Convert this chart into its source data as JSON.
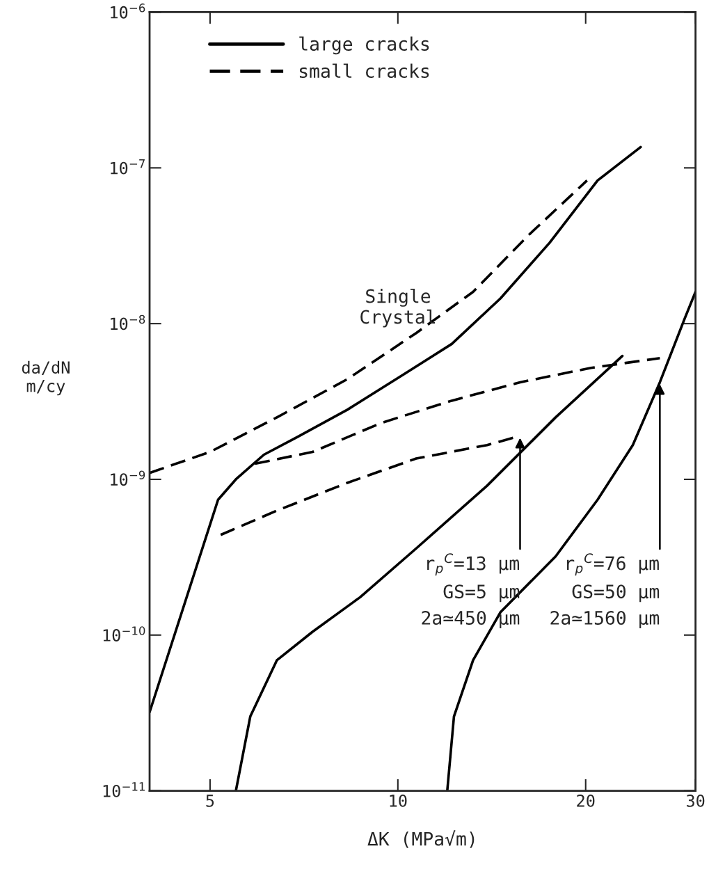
{
  "chart_data": {
    "type": "line",
    "xlabel": "ΔK (MPa√m)",
    "ylabel": "da/dN\nm/cy",
    "log": "xy",
    "xlim": [
      4,
      30
    ],
    "ylim": [
      1e-11,
      1e-06
    ],
    "xticks": [
      5,
      10,
      20,
      30
    ],
    "yticks": [
      {
        "value": 1e-11,
        "label": "10$^{−11}$"
      },
      {
        "value": 1e-10,
        "label": "10$^{−10}$"
      },
      {
        "value": 1e-09,
        "label": "10$^{−9}$"
      },
      {
        "value": 1e-08,
        "label": "10$^{−8}$"
      },
      {
        "value": 1e-07,
        "label": "10$^{−7}$"
      },
      {
        "value": 1e-06,
        "label": "10$^{−6}$"
      }
    ],
    "grid": false,
    "legend": "top left",
    "marker": "none",
    "series": [
      {
        "name": "large cracks",
        "color": "#000000",
        "line_style": "solid",
        "x": [
          4.0,
          5.15,
          5.5,
          6.1,
          6.9,
          8.3,
          10.2,
          12.2,
          14.6,
          17.5,
          20.9,
          24.5
        ],
        "values": [
          3.2e-11,
          7.4e-10,
          1e-09,
          1.44e-09,
          1.87e-09,
          2.8e-09,
          4.7e-09,
          7.4e-09,
          1.45e-08,
          3.3e-08,
          8.3e-08,
          1.36e-07
        ]
      },
      {
        "color": "#000000",
        "line_style": "solid",
        "x": [
          5.5,
          5.8,
          6.4,
          7.3,
          8.7,
          10.7,
          13.9,
          17.9,
          22.9
        ],
        "values": [
          1e-11,
          3e-11,
          6.9e-11,
          1.05e-10,
          1.75e-10,
          3.6e-10,
          9.1e-10,
          2.5e-09,
          6.2e-09
        ]
      },
      {
        "color": "#000000",
        "line_style": "solid",
        "x": [
          12.0,
          12.3,
          13.2,
          14.6,
          17.9,
          20.9,
          23.8,
          26.3,
          28.8,
          30.0
        ],
        "values": [
          1e-11,
          3e-11,
          6.9e-11,
          1.4e-10,
          3.2e-10,
          7.4e-10,
          1.66e-09,
          4.2e-09,
          1.07e-08,
          1.6e-08
        ]
      },
      {
        "name": "small cracks",
        "color": "#000000",
        "line_style": "dashed",
        "x": [
          4.0,
          5.0,
          6.4,
          8.3,
          10.7,
          13.2,
          16.2,
          20.1
        ],
        "values": [
          1.1e-09,
          1.5e-09,
          2.5e-09,
          4.4e-09,
          8.7e-09,
          1.6e-08,
          3.7e-08,
          8.3e-08
        ]
      },
      {
        "color": "#000000",
        "line_style": "dashed",
        "x": [
          5.9,
          7.3,
          9.4,
          12.2,
          15.7,
          20.4,
          26.3
        ],
        "values": [
          1.26e-09,
          1.5e-09,
          2.3e-09,
          3.2e-09,
          4.2e-09,
          5.2e-09,
          6e-09
        ]
      },
      {
        "color": "#000000",
        "line_style": "dashed",
        "x": [
          5.2,
          6.4,
          8.3,
          10.7,
          13.9,
          15.7
        ],
        "values": [
          4.4e-10,
          6.3e-10,
          9.5e-10,
          1.36e-09,
          1.66e-09,
          1.9e-09
        ]
      }
    ],
    "annotations": [
      "Single\nCrystal",
      {
        "text": "r$_{p}$$^{C}$=13 µm\nGS=5 µm\n2a≃450 µm",
        "x": 15.7,
        "y": 1.9e-09
      },
      {
        "text": "r$_{p}$$^{C}$=76 µm\nGS=50 µm\n2a≃1560 µm",
        "x": 26.3,
        "y": 4.2e-09
      }
    ]
  }
}
